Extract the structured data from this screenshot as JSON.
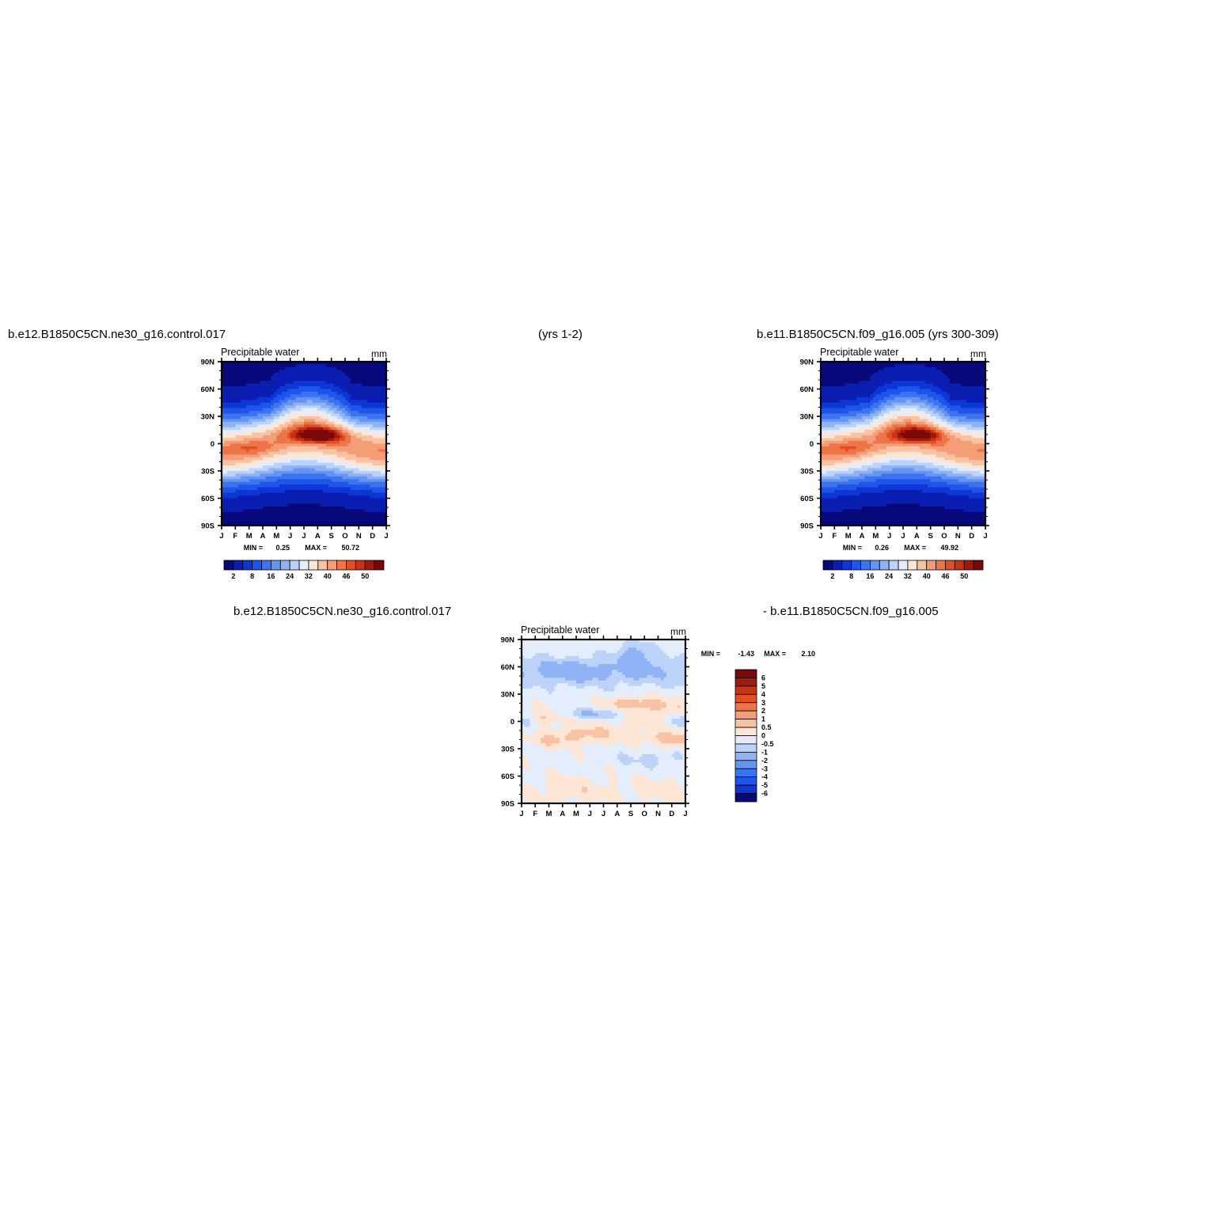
{
  "headers": {
    "left": "b.e12.B1850C5CN.ne30_g16.control.017",
    "middle": "(yrs 1-2)",
    "right": "b.e11.B1850C5CN.f09_g16.005 (yrs 300-309)",
    "diff_left": "b.e12.B1850C5CN.ne30_g16.control.017",
    "diff_right": "- b.e11.B1850C5CN.f09_g16.005"
  },
  "chart_data": [
    {
      "type": "heatmap",
      "title": "Precipitable water",
      "units": "mm",
      "x": [
        "J",
        "F",
        "M",
        "A",
        "M",
        "J",
        "J",
        "A",
        "S",
        "O",
        "N",
        "D",
        "J"
      ],
      "y_ticks": [
        "90N",
        "60N",
        "30N",
        "0",
        "30S",
        "60S",
        "90S"
      ],
      "ylim": [
        -90,
        90
      ],
      "stats": {
        "min_label": "MIN =",
        "min": "0.25",
        "max_label": "MAX =",
        "max": "50.72"
      },
      "colorbar": {
        "orientation": "horizontal",
        "labels": [
          "2",
          "8",
          "16",
          "24",
          "32",
          "40",
          "46",
          "50"
        ],
        "colors": [
          "#08097a",
          "#0a1fb2",
          "#0c36d6",
          "#1f55e9",
          "#3c73f0",
          "#6495f2",
          "#8fb3f5",
          "#bcd2f8",
          "#e4edfb",
          "#fde6d6",
          "#f9c2a3",
          "#f49d76",
          "#ee7549",
          "#e14f24",
          "#c73315",
          "#a01a0c",
          "#7a0808"
        ]
      }
    },
    {
      "type": "heatmap",
      "title": "Precipitable water",
      "units": "mm",
      "x": [
        "J",
        "F",
        "M",
        "A",
        "M",
        "J",
        "J",
        "A",
        "S",
        "O",
        "N",
        "D",
        "J"
      ],
      "y_ticks": [
        "90N",
        "60N",
        "30N",
        "0",
        "30S",
        "60S",
        "90S"
      ],
      "ylim": [
        -90,
        90
      ],
      "stats": {
        "min_label": "MIN =",
        "min": "0.26",
        "max_label": "MAX =",
        "max": "49.92"
      },
      "colorbar": {
        "orientation": "horizontal",
        "labels": [
          "2",
          "8",
          "16",
          "24",
          "32",
          "40",
          "46",
          "50"
        ],
        "colors": [
          "#08097a",
          "#0a1fb2",
          "#0c36d6",
          "#1f55e9",
          "#3c73f0",
          "#6495f2",
          "#8fb3f5",
          "#bcd2f8",
          "#e4edfb",
          "#fde6d6",
          "#f9c2a3",
          "#f49d76",
          "#ee7549",
          "#e14f24",
          "#c73315",
          "#a01a0c",
          "#7a0808"
        ]
      }
    },
    {
      "type": "heatmap",
      "title": "Precipitable water",
      "units": "mm",
      "x": [
        "J",
        "F",
        "M",
        "A",
        "M",
        "J",
        "J",
        "A",
        "S",
        "O",
        "N",
        "D",
        "J"
      ],
      "y_ticks": [
        "90N",
        "60N",
        "30N",
        "0",
        "30S",
        "60S",
        "90S"
      ],
      "ylim": [
        -90,
        90
      ],
      "stats": {
        "min_label": "MIN =",
        "min": "-1.43",
        "max_label": "MAX =",
        "max": "2.10"
      },
      "colorbar": {
        "orientation": "vertical",
        "labels": [
          "6",
          "5",
          "4",
          "3",
          "2",
          "1",
          "0.5",
          "0",
          "-0.5",
          "-1",
          "-2",
          "-3",
          "-4",
          "-5",
          "-6"
        ],
        "colors": [
          "#7a0808",
          "#a01a0c",
          "#c73315",
          "#e14f24",
          "#ee7549",
          "#f49d76",
          "#f9c2a3",
          "#fde6d6",
          "#e4edfb",
          "#bcd2f8",
          "#8fb3f5",
          "#6495f2",
          "#3c73f0",
          "#1f55e9",
          "#0c36d6",
          "#08097a"
        ]
      }
    }
  ]
}
